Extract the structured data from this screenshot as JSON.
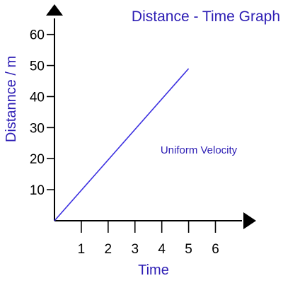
{
  "colors": {
    "title": "#2d1eb4",
    "line": "#3b2fe0",
    "axis": "#000000",
    "background": "#ffffff"
  },
  "chart_data": {
    "type": "line",
    "title": "Distance - Time Graph",
    "xlabel": "Time",
    "ylabel": "Distannce / m",
    "annotation": "Uniform Velocity",
    "xlim": [
      0,
      7.2
    ],
    "ylim": [
      0,
      67
    ],
    "x_ticks": [
      1,
      2,
      3,
      4,
      5,
      6
    ],
    "y_ticks": [
      10,
      20,
      30,
      40,
      50,
      60
    ],
    "grid": false,
    "legend": "none",
    "series": [
      {
        "x": [
          0,
          5
        ],
        "y": [
          0,
          49
        ]
      }
    ]
  }
}
